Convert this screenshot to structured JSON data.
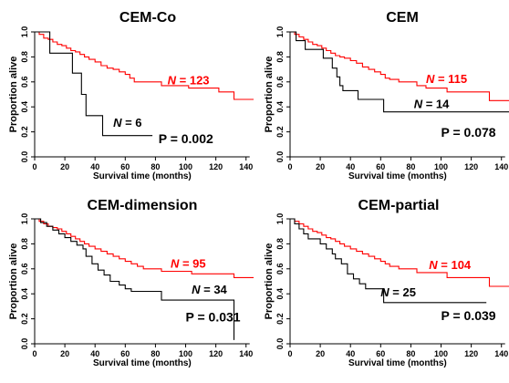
{
  "chart_data": [
    {
      "type": "line",
      "title": "CEM-Co",
      "xlabel": "Survival time (months)",
      "ylabel": "Proportion alive",
      "xlim": [
        0,
        145
      ],
      "ylim": [
        0,
        1
      ],
      "xticks": [
        0,
        20,
        40,
        60,
        80,
        100,
        120,
        140
      ],
      "yticks": [
        0.0,
        0.2,
        0.4,
        0.6,
        0.8,
        1.0
      ],
      "grid": false,
      "series": [
        {
          "color": "#ff0000",
          "label": "N = 123",
          "label_x": 88,
          "label_y": 0.58,
          "points": [
            [
              0,
              1.0
            ],
            [
              3,
              0.98
            ],
            [
              6,
              0.95
            ],
            [
              9,
              0.94
            ],
            [
              12,
              0.92
            ],
            [
              15,
              0.9
            ],
            [
              18,
              0.89
            ],
            [
              21,
              0.87
            ],
            [
              24,
              0.85
            ],
            [
              27,
              0.84
            ],
            [
              30,
              0.82
            ],
            [
              33,
              0.8
            ],
            [
              36,
              0.78
            ],
            [
              40,
              0.76
            ],
            [
              44,
              0.73
            ],
            [
              48,
              0.71
            ],
            [
              52,
              0.7
            ],
            [
              56,
              0.68
            ],
            [
              60,
              0.66
            ],
            [
              63,
              0.63
            ],
            [
              66,
              0.6
            ],
            [
              72,
              0.6
            ],
            [
              80,
              0.6
            ],
            [
              84,
              0.57
            ],
            [
              90,
              0.57
            ],
            [
              98,
              0.57
            ],
            [
              102,
              0.55
            ],
            [
              110,
              0.55
            ],
            [
              118,
              0.55
            ],
            [
              122,
              0.52
            ],
            [
              128,
              0.52
            ],
            [
              132,
              0.46
            ],
            [
              145,
              0.46
            ]
          ]
        },
        {
          "color": "#000000",
          "label": "N = 6",
          "label_x": 52,
          "label_y": 0.24,
          "points": [
            [
              0,
              1.0
            ],
            [
              10,
              1.0
            ],
            [
              10,
              0.83
            ],
            [
              25,
              0.83
            ],
            [
              25,
              0.67
            ],
            [
              31,
              0.67
            ],
            [
              31,
              0.5
            ],
            [
              34,
              0.5
            ],
            [
              34,
              0.33
            ],
            [
              45,
              0.33
            ],
            [
              45,
              0.17
            ],
            [
              78,
              0.17
            ]
          ]
        }
      ],
      "annotation": "P = 0.002",
      "annotation_x": 82,
      "annotation_y": 0.11
    },
    {
      "type": "line",
      "title": "CEM",
      "xlabel": "Survival time (months)",
      "ylabel": "Proportion alive",
      "xlim": [
        0,
        145
      ],
      "ylim": [
        0,
        1
      ],
      "xticks": [
        0,
        20,
        40,
        60,
        80,
        100,
        120,
        140
      ],
      "yticks": [
        0.0,
        0.2,
        0.4,
        0.6,
        0.8,
        1.0
      ],
      "grid": false,
      "series": [
        {
          "color": "#ff0000",
          "label": "N = 115",
          "label_x": 90,
          "label_y": 0.59,
          "points": [
            [
              0,
              1.0
            ],
            [
              3,
              0.98
            ],
            [
              6,
              0.96
            ],
            [
              9,
              0.94
            ],
            [
              12,
              0.92
            ],
            [
              15,
              0.9
            ],
            [
              18,
              0.89
            ],
            [
              21,
              0.87
            ],
            [
              24,
              0.85
            ],
            [
              27,
              0.83
            ],
            [
              30,
              0.81
            ],
            [
              33,
              0.8
            ],
            [
              36,
              0.79
            ],
            [
              40,
              0.77
            ],
            [
              44,
              0.75
            ],
            [
              48,
              0.72
            ],
            [
              52,
              0.7
            ],
            [
              56,
              0.68
            ],
            [
              60,
              0.66
            ],
            [
              63,
              0.63
            ],
            [
              66,
              0.62
            ],
            [
              72,
              0.6
            ],
            [
              80,
              0.6
            ],
            [
              84,
              0.57
            ],
            [
              90,
              0.55
            ],
            [
              98,
              0.55
            ],
            [
              104,
              0.52
            ],
            [
              110,
              0.52
            ],
            [
              120,
              0.52
            ],
            [
              128,
              0.52
            ],
            [
              132,
              0.45
            ],
            [
              145,
              0.45
            ]
          ]
        },
        {
          "color": "#000000",
          "label": "N = 14",
          "label_x": 82,
          "label_y": 0.39,
          "points": [
            [
              0,
              1.0
            ],
            [
              4,
              0.93
            ],
            [
              10,
              0.86
            ],
            [
              20,
              0.86
            ],
            [
              22,
              0.79
            ],
            [
              28,
              0.71
            ],
            [
              31,
              0.64
            ],
            [
              33,
              0.57
            ],
            [
              35,
              0.53
            ],
            [
              45,
              0.53
            ],
            [
              45,
              0.46
            ],
            [
              60,
              0.46
            ],
            [
              62,
              0.36
            ],
            [
              145,
              0.36
            ]
          ]
        }
      ],
      "annotation": "P = 0.078",
      "annotation_x": 100,
      "annotation_y": 0.16
    },
    {
      "type": "line",
      "title": "CEM-dimension",
      "xlabel": "Survival time (months)",
      "ylabel": "Proportion alive",
      "xlim": [
        0,
        145
      ],
      "ylim": [
        0,
        1
      ],
      "xticks": [
        0,
        20,
        40,
        60,
        80,
        100,
        120,
        140
      ],
      "yticks": [
        0.0,
        0.2,
        0.4,
        0.6,
        0.8,
        1.0
      ],
      "grid": false,
      "series": [
        {
          "color": "#ff0000",
          "label": "N = 95",
          "label_x": 90,
          "label_y": 0.61,
          "points": [
            [
              0,
              1.0
            ],
            [
              3,
              0.98
            ],
            [
              6,
              0.96
            ],
            [
              9,
              0.94
            ],
            [
              12,
              0.93
            ],
            [
              15,
              0.92
            ],
            [
              18,
              0.9
            ],
            [
              21,
              0.88
            ],
            [
              24,
              0.86
            ],
            [
              27,
              0.84
            ],
            [
              30,
              0.82
            ],
            [
              33,
              0.8
            ],
            [
              36,
              0.78
            ],
            [
              40,
              0.76
            ],
            [
              44,
              0.74
            ],
            [
              48,
              0.72
            ],
            [
              52,
              0.7
            ],
            [
              56,
              0.68
            ],
            [
              60,
              0.66
            ],
            [
              64,
              0.64
            ],
            [
              68,
              0.62
            ],
            [
              72,
              0.6
            ],
            [
              80,
              0.6
            ],
            [
              84,
              0.58
            ],
            [
              90,
              0.58
            ],
            [
              98,
              0.58
            ],
            [
              104,
              0.56
            ],
            [
              110,
              0.56
            ],
            [
              120,
              0.56
            ],
            [
              128,
              0.56
            ],
            [
              132,
              0.53
            ],
            [
              145,
              0.53
            ]
          ]
        },
        {
          "color": "#000000",
          "label": "N = 34",
          "label_x": 104,
          "label_y": 0.4,
          "points": [
            [
              0,
              1.0
            ],
            [
              4,
              0.97
            ],
            [
              8,
              0.94
            ],
            [
              12,
              0.91
            ],
            [
              16,
              0.88
            ],
            [
              20,
              0.85
            ],
            [
              24,
              0.82
            ],
            [
              28,
              0.79
            ],
            [
              32,
              0.76
            ],
            [
              34,
              0.7
            ],
            [
              38,
              0.64
            ],
            [
              42,
              0.59
            ],
            [
              46,
              0.55
            ],
            [
              50,
              0.5
            ],
            [
              56,
              0.47
            ],
            [
              60,
              0.44
            ],
            [
              64,
              0.42
            ],
            [
              70,
              0.42
            ],
            [
              84,
              0.42
            ],
            [
              84,
              0.35
            ],
            [
              124,
              0.35
            ],
            [
              132,
              0.35
            ],
            [
              132,
              0.03
            ]
          ]
        }
      ],
      "annotation": "P = 0.031",
      "annotation_x": 100,
      "annotation_y": 0.18
    },
    {
      "type": "line",
      "title": "CEM-partial",
      "xlabel": "Survival time (months)",
      "ylabel": "Proportion alive",
      "xlim": [
        0,
        145
      ],
      "ylim": [
        0,
        1
      ],
      "xticks": [
        0,
        20,
        40,
        60,
        80,
        100,
        120,
        140
      ],
      "yticks": [
        0.0,
        0.2,
        0.4,
        0.6,
        0.8,
        1.0
      ],
      "grid": false,
      "series": [
        {
          "color": "#ff0000",
          "label": "N = 104",
          "label_x": 92,
          "label_y": 0.6,
          "points": [
            [
              0,
              1.0
            ],
            [
              3,
              0.98
            ],
            [
              6,
              0.96
            ],
            [
              9,
              0.94
            ],
            [
              12,
              0.92
            ],
            [
              15,
              0.9
            ],
            [
              18,
              0.89
            ],
            [
              21,
              0.87
            ],
            [
              24,
              0.85
            ],
            [
              27,
              0.84
            ],
            [
              30,
              0.82
            ],
            [
              33,
              0.8
            ],
            [
              36,
              0.78
            ],
            [
              40,
              0.76
            ],
            [
              44,
              0.74
            ],
            [
              48,
              0.72
            ],
            [
              52,
              0.7
            ],
            [
              56,
              0.68
            ],
            [
              60,
              0.66
            ],
            [
              63,
              0.64
            ],
            [
              66,
              0.62
            ],
            [
              72,
              0.6
            ],
            [
              80,
              0.6
            ],
            [
              84,
              0.57
            ],
            [
              90,
              0.57
            ],
            [
              98,
              0.57
            ],
            [
              104,
              0.53
            ],
            [
              110,
              0.53
            ],
            [
              120,
              0.53
            ],
            [
              128,
              0.53
            ],
            [
              132,
              0.46
            ],
            [
              145,
              0.46
            ]
          ]
        },
        {
          "color": "#000000",
          "label": "N = 25",
          "label_x": 60,
          "label_y": 0.38,
          "points": [
            [
              0,
              1.0
            ],
            [
              3,
              0.96
            ],
            [
              6,
              0.92
            ],
            [
              9,
              0.88
            ],
            [
              12,
              0.84
            ],
            [
              18,
              0.84
            ],
            [
              20,
              0.8
            ],
            [
              24,
              0.76
            ],
            [
              28,
              0.72
            ],
            [
              30,
              0.68
            ],
            [
              34,
              0.64
            ],
            [
              38,
              0.56
            ],
            [
              42,
              0.52
            ],
            [
              46,
              0.48
            ],
            [
              50,
              0.44
            ],
            [
              60,
              0.44
            ],
            [
              62,
              0.33
            ],
            [
              130,
              0.33
            ]
          ]
        }
      ],
      "annotation": "P = 0.039",
      "annotation_x": 100,
      "annotation_y": 0.19
    }
  ]
}
